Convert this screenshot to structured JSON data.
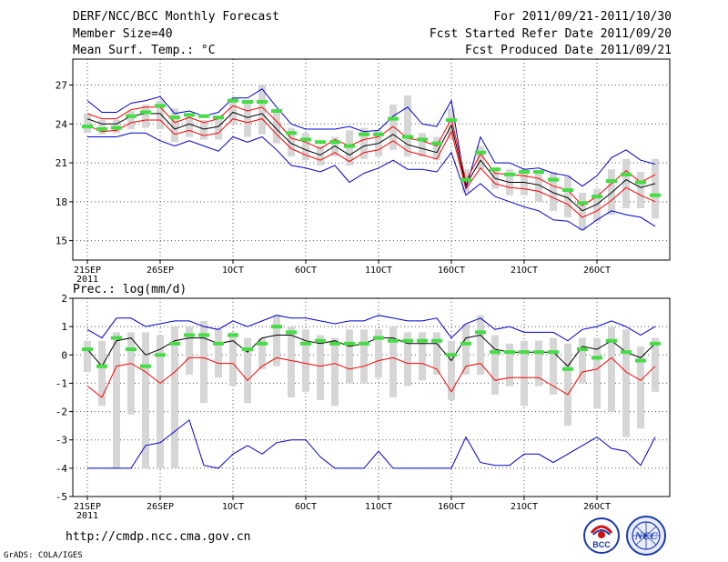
{
  "header": {
    "title": "DERF/NCC/BCC Monthly Forecast",
    "member_size": "Member Size=40",
    "variable1": "Mean Surf. Temp.: °C",
    "period": "For 2011/09/21-2011/10/30",
    "started": "Fcst Started Refer Date 2011/09/20",
    "produced": "Fcst Produced Date 2011/09/21"
  },
  "footer": {
    "url": "http://cmdp.ncc.cma.gov.cn",
    "grads": "GrADS: COLA/IGES",
    "logo1_text": "BCC",
    "logo2_text": "NCC"
  },
  "colors": {
    "grid": "#555555",
    "box": "#d6d6d6",
    "median": "#44dd44",
    "mean": "#000000",
    "max": "#0000cc",
    "p": "#ff0000"
  },
  "chart_data": [
    {
      "type": "line",
      "title": "Mean Surf. Temp.: °C",
      "xlabel": "",
      "ylabel": "",
      "ylim": [
        13.5,
        29
      ],
      "yticks": [
        15,
        18,
        21,
        24,
        27
      ],
      "xlim": [
        0,
        39
      ],
      "xticks": [
        {
          "i": 0,
          "label": "21SEP",
          "sub": "2011"
        },
        {
          "i": 5,
          "label": "26SEP"
        },
        {
          "i": 10,
          "label": "1OCT"
        },
        {
          "i": 15,
          "label": "6OCT"
        },
        {
          "i": 20,
          "label": "11OCT"
        },
        {
          "i": 25,
          "label": "16OCT"
        },
        {
          "i": 30,
          "label": "21OCT"
        },
        {
          "i": 35,
          "label": "26OCT"
        }
      ],
      "series": [
        {
          "name": "max",
          "values": [
            25.8,
            24.9,
            24.9,
            25.6,
            25.8,
            26.1,
            24.8,
            25.0,
            24.6,
            24.9,
            26.0,
            26.0,
            26.7,
            25.3,
            24.0,
            23.6,
            23.6,
            23.6,
            23.8,
            23.4,
            23.5,
            24.6,
            25.3,
            24.0,
            23.8,
            25.8,
            19.0,
            23.0,
            21.0,
            21.0,
            20.5,
            20.6,
            20.2,
            20.0,
            19.2,
            20.0,
            21.4,
            22.0,
            21.2,
            20.9
          ]
        },
        {
          "name": "upper",
          "values": [
            24.8,
            24.4,
            24.4,
            25.1,
            25.3,
            25.3,
            24.1,
            24.5,
            24.1,
            24.4,
            25.4,
            25.0,
            25.3,
            24.2,
            22.9,
            22.6,
            22.1,
            22.8,
            22.3,
            22.8,
            23.0,
            23.8,
            22.9,
            22.7,
            22.3,
            24.4,
            19.6,
            21.7,
            20.2,
            20.1,
            20.0,
            19.8,
            19.2,
            18.9,
            17.7,
            18.4,
            19.4,
            20.4,
            19.5,
            20.1
          ]
        },
        {
          "name": "mean",
          "values": [
            24.4,
            24.0,
            24.0,
            24.6,
            24.8,
            24.8,
            23.6,
            24.0,
            23.6,
            23.8,
            24.9,
            24.5,
            24.8,
            23.6,
            22.5,
            22.0,
            21.6,
            22.3,
            21.6,
            22.3,
            22.5,
            23.2,
            22.4,
            22.1,
            21.8,
            23.9,
            19.3,
            21.2,
            19.8,
            19.5,
            19.5,
            19.3,
            18.7,
            18.3,
            17.3,
            17.8,
            18.7,
            19.7,
            19.1,
            19.4
          ]
        },
        {
          "name": "lower",
          "values": [
            23.9,
            23.4,
            23.5,
            24.1,
            24.3,
            24.3,
            23.2,
            23.5,
            23.1,
            23.3,
            24.4,
            24.1,
            24.4,
            23.2,
            22.1,
            21.6,
            21.2,
            21.8,
            21.1,
            21.8,
            22.0,
            22.7,
            21.9,
            21.6,
            21.3,
            23.4,
            19.0,
            20.6,
            19.4,
            19.1,
            19.0,
            18.8,
            18.3,
            17.8,
            16.8,
            17.3,
            18.1,
            19.1,
            18.5,
            18.0
          ]
        },
        {
          "name": "min",
          "values": [
            23.0,
            23.0,
            23.0,
            23.3,
            23.3,
            22.7,
            22.3,
            22.7,
            22.3,
            21.9,
            23.0,
            22.6,
            23.0,
            22.0,
            20.8,
            20.6,
            20.3,
            20.8,
            19.5,
            20.2,
            20.6,
            21.2,
            20.5,
            20.5,
            20.3,
            21.8,
            18.5,
            19.4,
            18.4,
            18.0,
            17.6,
            17.3,
            16.6,
            16.5,
            15.8,
            16.6,
            17.3,
            17.0,
            16.8,
            16.1
          ]
        }
      ],
      "box_bottom": [
        23.3,
        23.2,
        23.3,
        23.6,
        23.7,
        23.6,
        22.6,
        23.0,
        22.8,
        22.8,
        24.0,
        23.0,
        23.2,
        22.5,
        21.5,
        21.2,
        20.8,
        21.5,
        20.8,
        21.3,
        21.5,
        22.0,
        21.5,
        21.5,
        21.2,
        22.8,
        18.7,
        20.5,
        19.0,
        18.5,
        18.5,
        18.0,
        17.3,
        16.8,
        15.8,
        16.5,
        17.0,
        17.5,
        17.5,
        16.7
      ],
      "box_top": [
        24.8,
        24.3,
        24.3,
        25.0,
        25.5,
        25.8,
        25.2,
        24.7,
        24.3,
        24.5,
        26.0,
        25.8,
        27.0,
        25.0,
        23.7,
        23.3,
        22.3,
        23.0,
        23.5,
        23.7,
        23.5,
        25.5,
        26.2,
        23.3,
        23.0,
        25.2,
        20.5,
        22.3,
        20.5,
        20.5,
        20.5,
        20.3,
        20.3,
        20.0,
        18.7,
        19.0,
        20.5,
        21.3,
        20.3,
        21.3
      ],
      "median": [
        23.8,
        23.6,
        23.7,
        24.6,
        24.9,
        25.4,
        24.5,
        24.7,
        24.6,
        24.5,
        25.8,
        25.7,
        25.7,
        25.0,
        23.3,
        22.8,
        22.6,
        22.6,
        22.3,
        23.2,
        23.2,
        24.4,
        23.0,
        22.8,
        22.5,
        24.3,
        19.7,
        21.8,
        20.5,
        20.1,
        20.3,
        20.3,
        19.7,
        18.9,
        17.9,
        18.4,
        19.6,
        20.1,
        19.5,
        18.5
      ]
    },
    {
      "type": "line",
      "title": "Prec.: log(mm/d)",
      "xlabel": "",
      "ylabel": "",
      "ylim": [
        -5,
        2
      ],
      "yticks": [
        -5,
        -4,
        -3,
        -2,
        -1,
        0,
        1,
        2
      ],
      "xlim": [
        0,
        39
      ],
      "xticks": [
        {
          "i": 0,
          "label": "21SEP",
          "sub": "2011"
        },
        {
          "i": 5,
          "label": "26SEP"
        },
        {
          "i": 10,
          "label": "1OCT"
        },
        {
          "i": 15,
          "label": "6OCT"
        },
        {
          "i": 20,
          "label": "11OCT"
        },
        {
          "i": 25,
          "label": "16OCT"
        },
        {
          "i": 30,
          "label": "21OCT"
        },
        {
          "i": 35,
          "label": "26OCT"
        }
      ],
      "series": [
        {
          "name": "max",
          "values": [
            0.9,
            0.6,
            1.3,
            1.3,
            1.0,
            1.1,
            1.2,
            1.2,
            1.0,
            0.9,
            1.2,
            1.0,
            1.2,
            1.4,
            1.3,
            1.3,
            1.2,
            1.1,
            1.2,
            1.2,
            1.4,
            1.3,
            1.2,
            1.2,
            1.3,
            0.6,
            1.1,
            1.3,
            0.9,
            1.0,
            0.8,
            0.8,
            0.8,
            0.5,
            0.9,
            1.0,
            1.2,
            1.0,
            0.7,
            1.0
          ]
        },
        {
          "name": "mean",
          "values": [
            0.2,
            -0.4,
            0.5,
            0.6,
            0.0,
            0.2,
            0.5,
            0.6,
            0.6,
            0.4,
            0.5,
            0.1,
            0.6,
            0.7,
            0.7,
            0.5,
            0.4,
            0.5,
            0.3,
            0.4,
            0.6,
            0.6,
            0.4,
            0.4,
            0.4,
            -0.2,
            0.6,
            0.7,
            0.2,
            0.1,
            0.1,
            0.1,
            0.1,
            -0.4,
            0.3,
            0.2,
            0.5,
            0.1,
            -0.1,
            0.4
          ]
        },
        {
          "name": "p",
          "values": [
            -1.1,
            -1.5,
            -0.4,
            -0.3,
            -0.6,
            -1.0,
            -0.6,
            -0.1,
            -0.1,
            -0.3,
            -0.3,
            -0.9,
            -0.4,
            -0.1,
            -0.2,
            -0.3,
            -0.4,
            -0.3,
            -0.5,
            -0.4,
            -0.2,
            -0.1,
            -0.3,
            -0.3,
            -0.5,
            -1.3,
            -0.4,
            -0.3,
            -0.9,
            -0.8,
            -0.8,
            -0.8,
            -1.1,
            -1.4,
            -0.6,
            -0.5,
            -0.1,
            -0.6,
            -0.9,
            -0.4
          ]
        },
        {
          "name": "min",
          "values": [
            -4.0,
            -4.0,
            -4.0,
            -4.0,
            -3.2,
            -3.1,
            -2.7,
            -2.3,
            -3.9,
            -4.0,
            -3.5,
            -3.2,
            -3.5,
            -3.1,
            -3.0,
            -3.0,
            -3.6,
            -4.0,
            -4.0,
            -4.0,
            -3.4,
            -4.0,
            -4.0,
            -4.0,
            -4.0,
            -4.0,
            -2.9,
            -3.8,
            -3.9,
            -3.9,
            -3.5,
            -3.5,
            -3.8,
            -3.5,
            -3.2,
            -2.9,
            -3.3,
            -3.4,
            -3.9,
            -2.9
          ]
        }
      ],
      "box_bottom": [
        -0.6,
        -1.8,
        -4.0,
        -2.1,
        -4.0,
        -4.0,
        -4.0,
        -0.7,
        -1.7,
        -0.8,
        -1.1,
        -1.7,
        -0.5,
        -0.4,
        -1.5,
        -1.3,
        -1.6,
        -1.8,
        -1.0,
        -1.0,
        -0.8,
        -1.5,
        -1.1,
        -0.9,
        -0.7,
        -1.6,
        -0.7,
        -0.7,
        -1.4,
        -1.1,
        -1.8,
        -1.1,
        -1.4,
        -2.5,
        -1.0,
        -1.9,
        -2.0,
        -2.9,
        -2.6,
        -1.3
      ],
      "box_top": [
        0.5,
        0.5,
        0.8,
        0.8,
        0.8,
        0.7,
        1.0,
        1.0,
        1.2,
        0.9,
        0.8,
        0.6,
        0.6,
        1.4,
        1.0,
        0.9,
        0.7,
        0.6,
        0.9,
        0.9,
        0.9,
        1.0,
        0.8,
        0.8,
        0.8,
        0.5,
        1.1,
        1.4,
        0.7,
        0.4,
        0.5,
        0.5,
        0.6,
        0.4,
        0.6,
        0.6,
        1.0,
        0.9,
        0.3,
        0.6
      ],
      "median": [
        0.2,
        -0.4,
        0.6,
        0.2,
        -0.4,
        0.0,
        0.4,
        0.7,
        0.7,
        0.4,
        0.7,
        0.2,
        0.4,
        1.0,
        0.8,
        0.4,
        0.5,
        0.4,
        0.4,
        0.4,
        0.6,
        0.5,
        0.5,
        0.5,
        0.5,
        0.0,
        0.4,
        0.8,
        0.1,
        0.1,
        0.1,
        0.1,
        0.1,
        -0.5,
        0.2,
        -0.1,
        0.5,
        0.1,
        -0.2,
        0.4
      ]
    }
  ]
}
